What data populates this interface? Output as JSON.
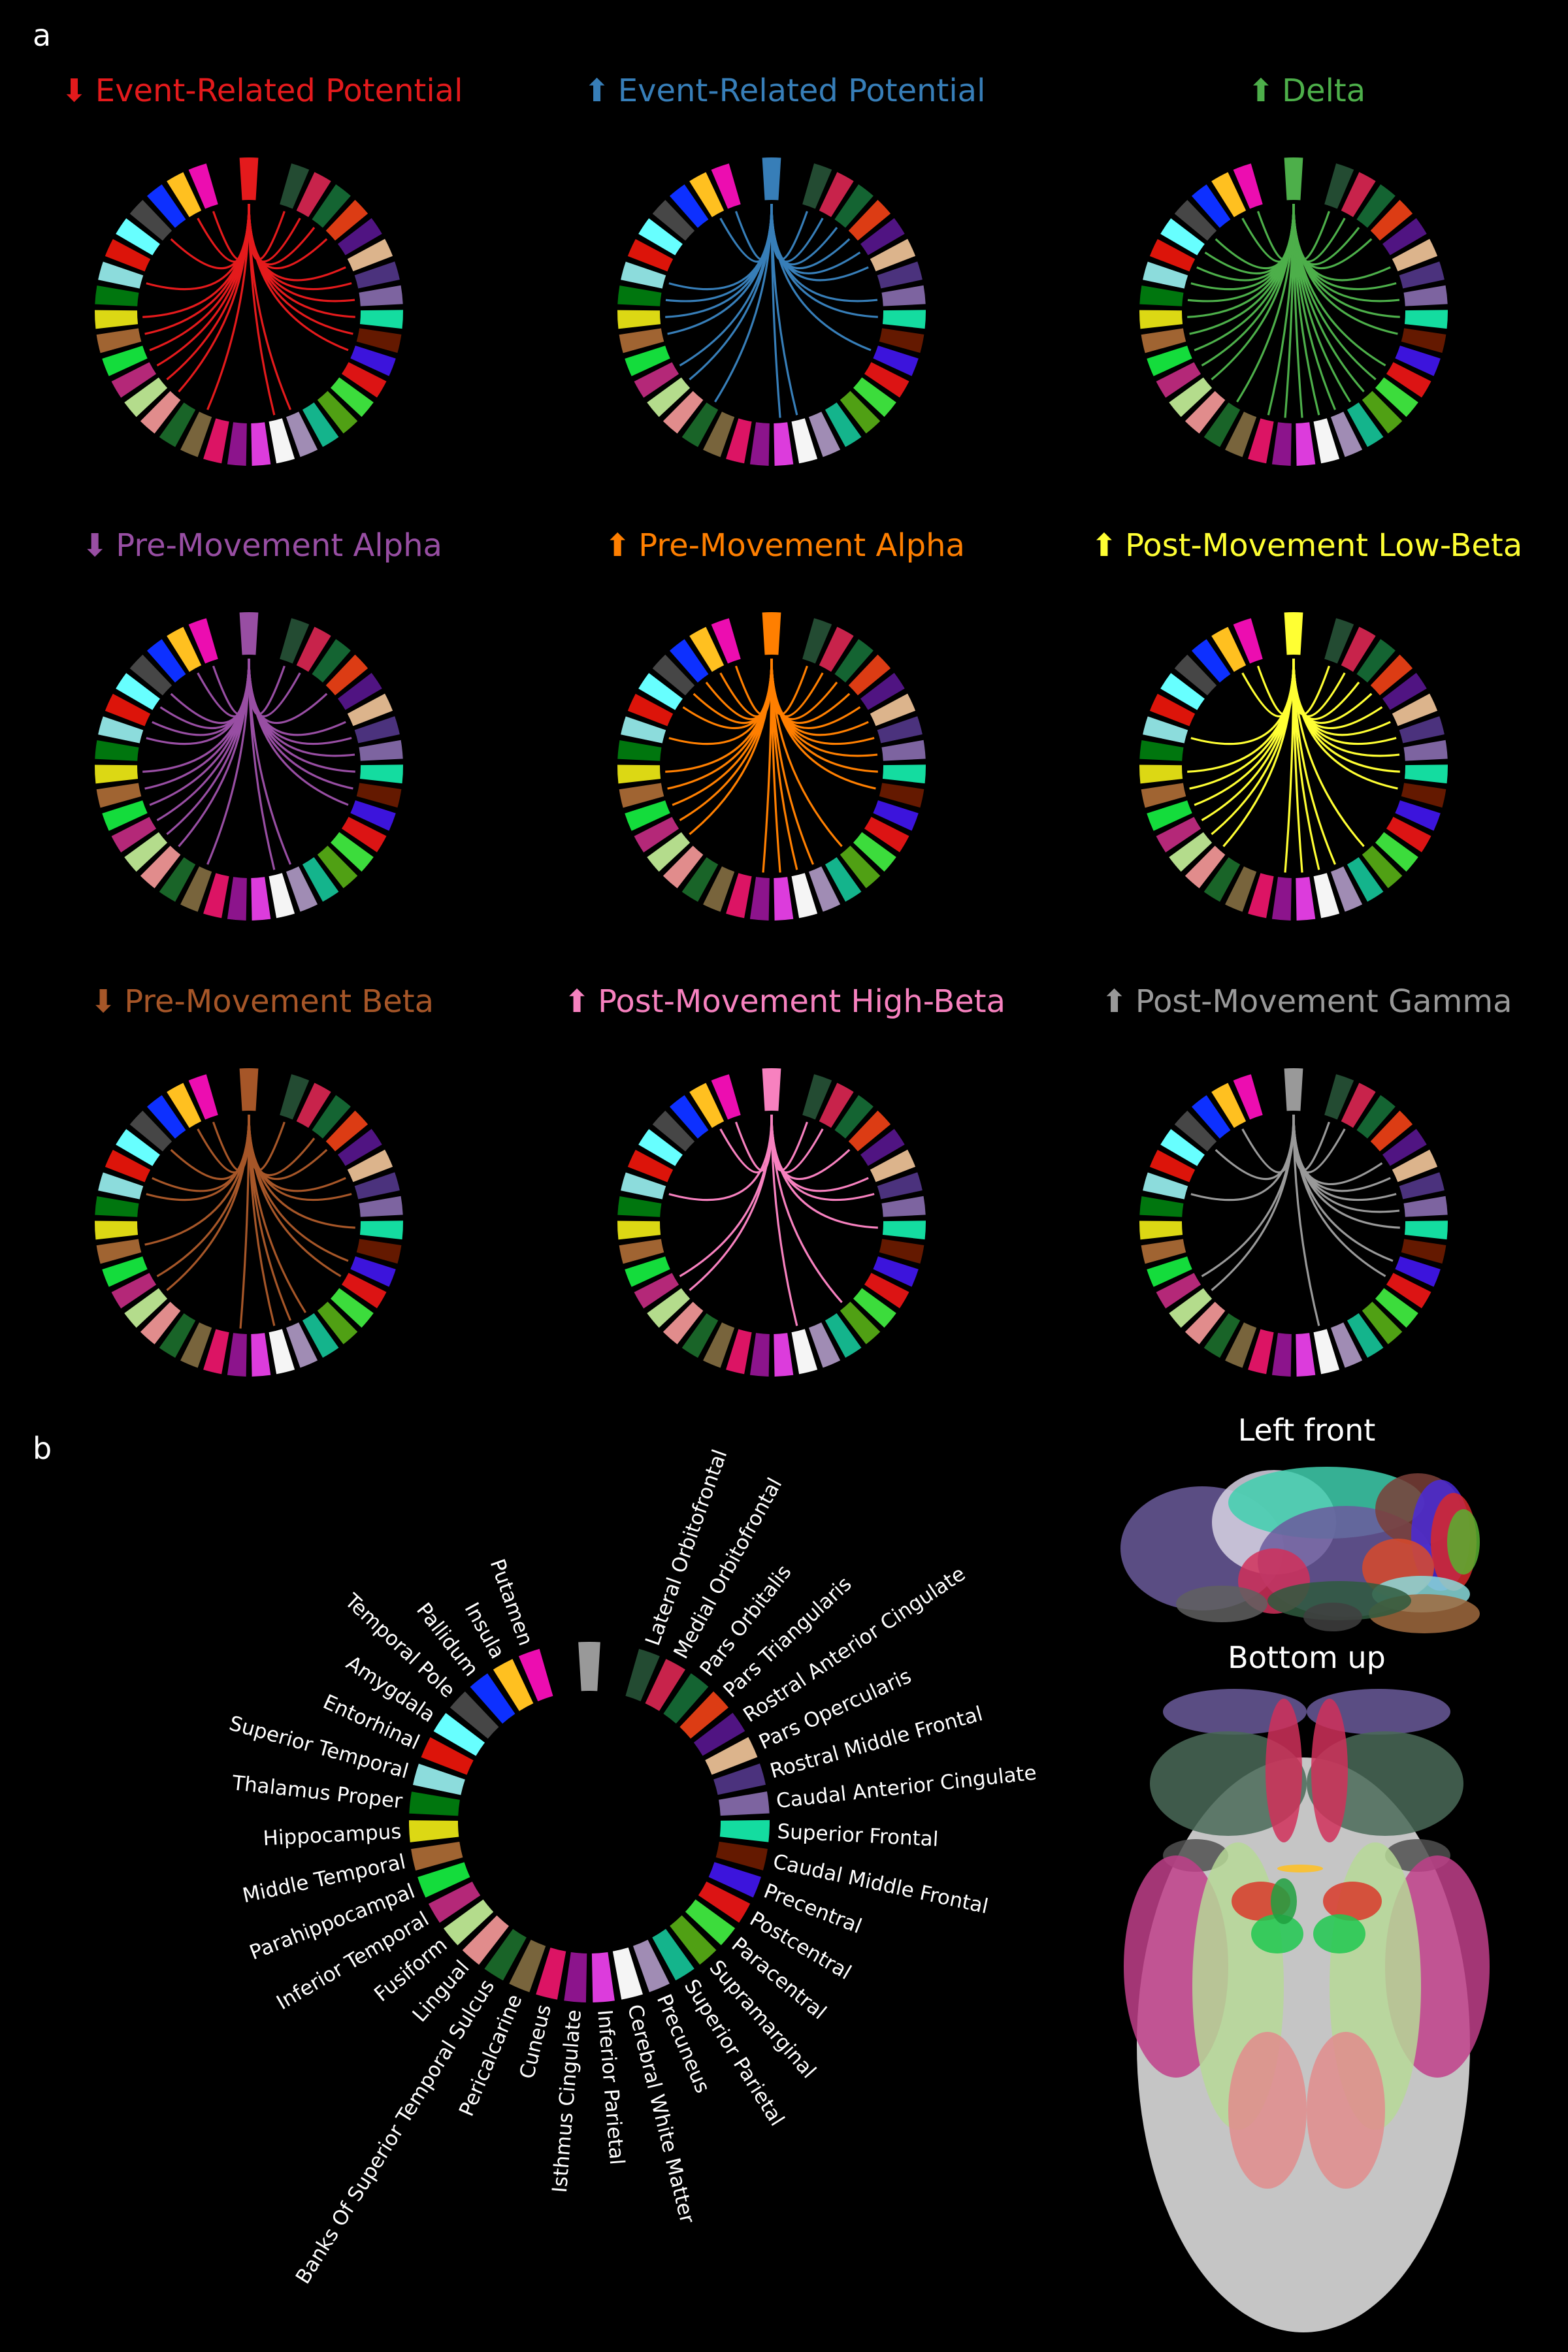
{
  "panel_a": {
    "letter": "a",
    "panels": [
      {
        "arrow": "⬇",
        "title": "Event-Related Potential",
        "color": "#e41a1c",
        "connections": [
          "Lateral Orbitofrontal",
          "Medial Orbitofrontal",
          "Pars Orbitalis",
          "Pars Triangularis",
          "Pars Opercularis",
          "Rostral Middle Frontal",
          "Caudal Anterior Cingulate",
          "Superior Frontal",
          "Caudal Middle Frontal",
          "Precentral",
          "Precuneus",
          "Cerebral White Matter",
          "Pericalcarine",
          "Lingual",
          "Fusiform",
          "Inferior Temporal",
          "Parahippocampal",
          "Middle Temporal",
          "Hippocampus",
          "Superior Temporal",
          "Temporal Pole",
          "Insula",
          "Putamen"
        ]
      },
      {
        "arrow": "⬆",
        "title": "Event-Related Potential",
        "color": "#377eb8",
        "connections": [
          "Lateral Orbitofrontal",
          "Medial Orbitofrontal",
          "Pars Orbitalis",
          "Pars Triangularis",
          "Rostral Anterior Cingulate",
          "Pars Opercularis",
          "Caudal Anterior Cingulate",
          "Superior Frontal",
          "Precentral",
          "Cerebral White Matter",
          "Inferior Parietal",
          "Banks Of Superior Temporal Sulcus",
          "Fusiform",
          "Inferior Temporal",
          "Middle Temporal",
          "Hippocampus",
          "Thalamus Proper",
          "Superior Temporal",
          "Insula",
          "Putamen"
        ]
      },
      {
        "arrow": "⬆",
        "title": "Delta",
        "color": "#4daf4a",
        "connections": [
          "Lateral Orbitofrontal",
          "Medial Orbitofrontal",
          "Pars Orbitalis",
          "Pars Triangularis",
          "Pars Opercularis",
          "Rostral Middle Frontal",
          "Caudal Anterior Cingulate",
          "Superior Frontal",
          "Caudal Middle Frontal",
          "Postcentral",
          "Paracentral",
          "Supramarginal",
          "Superior Parietal",
          "Precuneus",
          "Cerebral White Matter",
          "Inferior Parietal",
          "Isthmus Cingulate",
          "Cuneus",
          "Banks Of Superior Temporal Sulcus",
          "Fusiform",
          "Inferior Temporal",
          "Parahippocampal",
          "Middle Temporal",
          "Hippocampus",
          "Thalamus Proper",
          "Superior Temporal",
          "Entorhinal",
          "Amygdala",
          "Temporal Pole",
          "Insula",
          "Putamen"
        ]
      },
      {
        "arrow": "⬇",
        "title": "Pre-Movement Alpha",
        "color": "#984ea3",
        "connections": [
          "Lateral Orbitofrontal",
          "Medial Orbitofrontal",
          "Pars Triangularis",
          "Pars Opercularis",
          "Rostral Middle Frontal",
          "Caudal Anterior Cingulate",
          "Superior Frontal",
          "Caudal Middle Frontal",
          "Precentral",
          "Precuneus",
          "Cerebral White Matter",
          "Pericalcarine",
          "Lingual",
          "Fusiform",
          "Inferior Temporal",
          "Parahippocampal",
          "Middle Temporal",
          "Hippocampus",
          "Superior Temporal",
          "Entorhinal",
          "Amygdala",
          "Temporal Pole",
          "Insula",
          "Putamen"
        ]
      },
      {
        "arrow": "⬆",
        "title": "Pre-Movement Alpha",
        "color": "#ff7f00",
        "connections": [
          "Lateral Orbitofrontal",
          "Medial Orbitofrontal",
          "Pars Orbitalis",
          "Pars Triangularis",
          "Rostral Anterior Cingulate",
          "Pars Opercularis",
          "Rostral Middle Frontal",
          "Caudal Anterior Cingulate",
          "Superior Frontal",
          "Caudal Middle Frontal",
          "Supramarginal",
          "Precuneus",
          "Cerebral White Matter",
          "Inferior Parietal",
          "Isthmus Cingulate",
          "Fusiform",
          "Inferior Temporal",
          "Parahippocampal",
          "Middle Temporal",
          "Hippocampus",
          "Superior Temporal",
          "Amygdala",
          "Temporal Pole",
          "Pallidum",
          "Insula",
          "Putamen"
        ]
      },
      {
        "arrow": "⬆",
        "title": "Post-Movement Low-Beta",
        "color": "#ffff33",
        "connections": [
          "Lateral Orbitofrontal",
          "Medial Orbitofrontal",
          "Pars Orbitalis",
          "Pars Triangularis",
          "Rostral Anterior Cingulate",
          "Pars Opercularis",
          "Rostral Middle Frontal",
          "Caudal Anterior Cingulate",
          "Superior Frontal",
          "Caudal Middle Frontal",
          "Supramarginal",
          "Precuneus",
          "Cerebral White Matter",
          "Inferior Parietal",
          "Isthmus Cingulate",
          "Lingual",
          "Fusiform",
          "Inferior Temporal",
          "Parahippocampal",
          "Middle Temporal",
          "Hippocampus",
          "Superior Temporal",
          "Insula",
          "Putamen"
        ]
      },
      {
        "arrow": "⬇",
        "title": "Pre-Movement Beta",
        "color": "#a65628",
        "connections": [
          "Lateral Orbitofrontal",
          "Pars Orbitalis",
          "Pars Triangularis",
          "Pars Opercularis",
          "Rostral Middle Frontal",
          "Superior Frontal",
          "Precentral",
          "Postcentral",
          "Superior Parietal",
          "Precuneus",
          "Cerebral White Matter",
          "Isthmus Cingulate",
          "Fusiform",
          "Inferior Temporal",
          "Middle Temporal",
          "Superior Temporal",
          "Entorhinal",
          "Temporal Pole",
          "Insula",
          "Putamen"
        ]
      },
      {
        "arrow": "⬆",
        "title": "Post-Movement High-Beta",
        "color": "#f781bf",
        "connections": [
          "Lateral Orbitofrontal",
          "Medial Orbitofrontal",
          "Pars Triangularis",
          "Pars Opercularis",
          "Rostral Middle Frontal",
          "Superior Frontal",
          "Supramarginal",
          "Cerebral White Matter",
          "Fusiform",
          "Inferior Temporal",
          "Superior Temporal",
          "Insula",
          "Putamen"
        ]
      },
      {
        "arrow": "⬆",
        "title": "Post-Movement Gamma",
        "color": "#999999",
        "connections": [
          "Lateral Orbitofrontal",
          "Medial Orbitofrontal",
          "Rostral Anterior Cingulate",
          "Pars Opercularis",
          "Rostral Middle Frontal",
          "Caudal Anterior Cingulate",
          "Superior Frontal",
          "Precentral",
          "Postcentral",
          "Cerebral White Matter",
          "Fusiform",
          "Inferior Temporal",
          "Superior Temporal",
          "Temporal Pole",
          "Insula"
        ]
      }
    ]
  },
  "panel_b": {
    "letter": "b",
    "seed_color": "#999999",
    "views": [
      "Left front",
      "Bottom up"
    ]
  },
  "regions": [
    {
      "name": "Lateral Orbitofrontal",
      "color": "#234b32"
    },
    {
      "name": "Medial Orbitofrontal",
      "color": "#c8234b"
    },
    {
      "name": "Pars Orbitalis",
      "color": "#146432"
    },
    {
      "name": "Pars Triangularis",
      "color": "#dc3c14"
    },
    {
      "name": "Rostral Anterior Cingulate",
      "color": "#501482"
    },
    {
      "name": "Pars Opercularis",
      "color": "#dcb48c"
    },
    {
      "name": "Rostral Middle Frontal",
      "color": "#4b327d"
    },
    {
      "name": "Caudal Anterior Cingulate",
      "color": "#7d64a0"
    },
    {
      "name": "Superior Frontal",
      "color": "#14dca0"
    },
    {
      "name": "Caudal Middle Frontal",
      "color": "#641900"
    },
    {
      "name": "Precentral",
      "color": "#3c14dc"
    },
    {
      "name": "Postcentral",
      "color": "#dc1414"
    },
    {
      "name": "Paracentral",
      "color": "#3cdc3c"
    },
    {
      "name": "Supramarginal",
      "color": "#50a014"
    },
    {
      "name": "Superior Parietal",
      "color": "#14b48c"
    },
    {
      "name": "Precuneus",
      "color": "#a08cb4"
    },
    {
      "name": "Cerebral White Matter",
      "color": "#f5f5f5"
    },
    {
      "name": "Inferior Parietal",
      "color": "#dc3cdc"
    },
    {
      "name": "Isthmus Cingulate",
      "color": "#8c148c"
    },
    {
      "name": "Cuneus",
      "color": "#dc1464"
    },
    {
      "name": "Pericalcarine",
      "color": "#78643c"
    },
    {
      "name": "Banks Of Superior Temporal Sulcus",
      "color": "#196428"
    },
    {
      "name": "Lingual",
      "color": "#e18c8c"
    },
    {
      "name": "Fusiform",
      "color": "#b4dc8c"
    },
    {
      "name": "Inferior Temporal",
      "color": "#b42878"
    },
    {
      "name": "Parahippocampal",
      "color": "#14dc3c"
    },
    {
      "name": "Middle Temporal",
      "color": "#a06432"
    },
    {
      "name": "Hippocampus",
      "color": "#dcd814"
    },
    {
      "name": "Thalamus Proper",
      "color": "#00760e"
    },
    {
      "name": "Superior Temporal",
      "color": "#8cdcdc"
    },
    {
      "name": "Entorhinal",
      "color": "#dc140a"
    },
    {
      "name": "Amygdala",
      "color": "#67ffff"
    },
    {
      "name": "Temporal Pole",
      "color": "#464646"
    },
    {
      "name": "Pallidum",
      "color": "#0d30ff"
    },
    {
      "name": "Insula",
      "color": "#ffc020"
    },
    {
      "name": "Putamen",
      "color": "#ec0db0"
    }
  ]
}
